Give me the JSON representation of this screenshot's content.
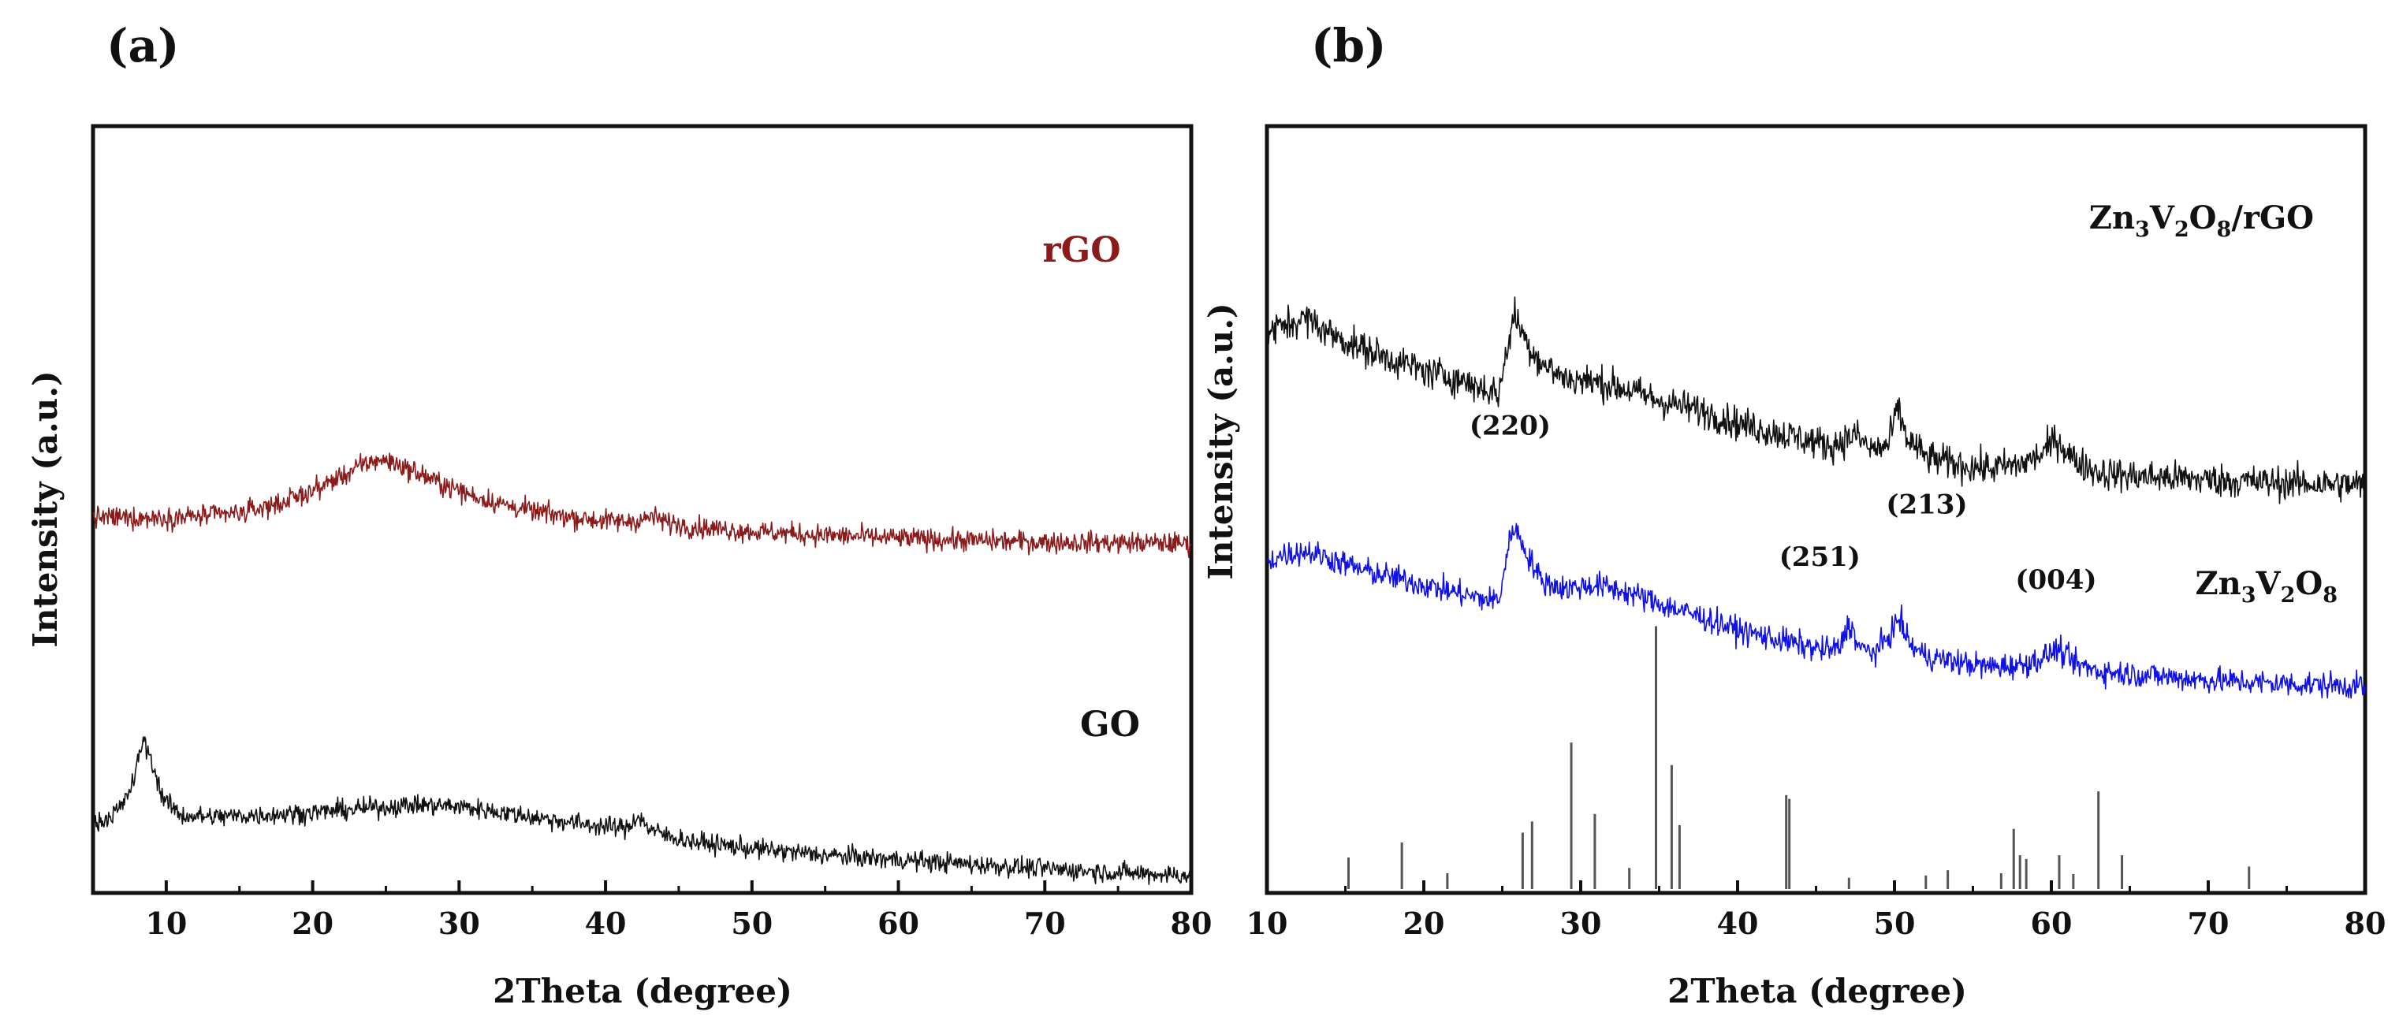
{
  "chart_data": [
    {
      "panel_label": "(a)",
      "type": "line",
      "xlabel": "2Theta (degree)",
      "ylabel": "Intensity (a.u.)",
      "xlim": [
        5,
        80
      ],
      "ylim": [
        0,
        100
      ],
      "xticks": [
        "10",
        "20",
        "30",
        "40",
        "50",
        "60",
        "70",
        "80"
      ],
      "yticks_shown": false,
      "series": [
        {
          "name": "rGO",
          "label": "rGO",
          "color": "#8b1a1a",
          "noise": 1.4,
          "x": [
            5,
            8,
            12,
            15,
            18,
            20,
            22,
            23.5,
            24.5,
            25.5,
            27,
            29,
            31,
            33,
            35,
            37,
            39,
            41,
            42.5,
            43.2,
            44,
            46,
            50,
            55,
            60,
            65,
            70,
            75,
            80
          ],
          "y": [
            49.5,
            49.4,
            49.6,
            50.0,
            51.5,
            53.0,
            55.0,
            56.5,
            57.2,
            56.8,
            55.5,
            53.8,
            52.3,
            51.2,
            50.3,
            49.7,
            49.2,
            48.9,
            49.1,
            49.6,
            48.9,
            48.2,
            47.6,
            47.1,
            46.7,
            46.4,
            46.2,
            46.1,
            46.0
          ]
        },
        {
          "name": "GO",
          "label": "GO",
          "color": "#111111",
          "noise": 1.3,
          "x": [
            5,
            6,
            7,
            7.8,
            8.4,
            9.0,
            9.8,
            11,
            13,
            16,
            20,
            24,
            27,
            30,
            33,
            36,
            38,
            40,
            41.5,
            42.2,
            43,
            44,
            46,
            50,
            55,
            60,
            65,
            70,
            75,
            80
          ],
          "y": [
            8.5,
            9.5,
            11.0,
            14.5,
            20.0,
            17.0,
            12.0,
            9.8,
            9.6,
            9.8,
            10.2,
            10.8,
            11.2,
            11.0,
            10.2,
            9.3,
            8.8,
            8.3,
            8.1,
            9.8,
            8.0,
            7.2,
            6.3,
            5.4,
            4.5,
            3.9,
            3.3,
            2.7,
            2.2,
            1.8
          ]
        }
      ]
    },
    {
      "panel_label": "(b)",
      "type": "line",
      "xlabel": "2Theta (degree)",
      "ylabel": "Intensity (a.u.)",
      "xlim": [
        10,
        80
      ],
      "ylim": [
        0,
        100
      ],
      "xticks": [
        "10",
        "20",
        "30",
        "40",
        "50",
        "60",
        "70",
        "80"
      ],
      "yticks_shown": false,
      "series": [
        {
          "name": "Zn3V2O8/rGO",
          "label_main": "Zn",
          "label_sub1": "3",
          "label_mid": "V",
          "label_sub2": "2",
          "label_o": "O",
          "label_sub3": "8",
          "label_tail": "/rGO",
          "color": "#111111",
          "noise": 2.2,
          "x": [
            10,
            11,
            12.5,
            14,
            16,
            18,
            20,
            22,
            24,
            24.8,
            25.4,
            25.8,
            26.5,
            27.5,
            29,
            31,
            33,
            35,
            38,
            40,
            42,
            44,
            46,
            47.5,
            48.5,
            49.6,
            50.2,
            50.8,
            52,
            54,
            56,
            58,
            59.5,
            60.3,
            61.5,
            63,
            65,
            67,
            70,
            73,
            76,
            80
          ],
          "y": [
            74,
            75,
            76,
            74,
            72,
            70.5,
            69,
            68,
            66.5,
            66,
            73,
            76.5,
            73,
            70,
            68,
            67.5,
            66.5,
            65,
            63.5,
            62,
            61,
            60,
            59,
            60.5,
            58.5,
            59,
            64,
            60,
            57.5,
            56.5,
            56,
            56.5,
            58,
            60,
            57,
            55.5,
            55,
            54.8,
            54.5,
            54.2,
            54,
            53.8
          ]
        },
        {
          "name": "Zn3V2O8",
          "label_main": "Zn",
          "label_sub1": "3",
          "label_mid": "V",
          "label_sub2": "2",
          "label_o": "O",
          "label_sub3": "8",
          "color": "#1010e8",
          "noise": 1.7,
          "x": [
            10,
            11,
            12.5,
            14,
            16,
            18,
            20,
            22,
            24,
            24.8,
            25.3,
            25.7,
            26.5,
            27.5,
            29,
            31,
            33,
            35,
            38,
            40,
            42,
            44,
            45.5,
            46.5,
            47.1,
            47.8,
            48.8,
            49.6,
            50.3,
            51,
            52,
            54,
            56,
            58,
            59.5,
            60.3,
            61.5,
            63,
            66,
            70,
            74,
            80
          ],
          "y": [
            43.5,
            44.5,
            45,
            44,
            42.5,
            41.5,
            40.5,
            39.5,
            38.5,
            38.5,
            44.5,
            48.5,
            45,
            41,
            40,
            40.5,
            39.5,
            38,
            36,
            34.5,
            33.5,
            32.5,
            31.8,
            32,
            35.5,
            32,
            31.5,
            33.5,
            36,
            32.5,
            31,
            30.2,
            29.6,
            29.8,
            30.8,
            32,
            30,
            29,
            28.5,
            27.8,
            27.4,
            27
          ]
        }
      ],
      "reference_pattern": {
        "color": "#555555",
        "x": [
          15.2,
          18.6,
          21.5,
          26.3,
          26.9,
          29.4,
          30.9,
          33.1,
          34.8,
          35.8,
          36.3,
          43.1,
          43.3,
          47.1,
          52,
          53.4,
          56.8,
          57.6,
          58,
          58.4,
          60.5,
          61.4,
          63,
          64.5,
          72.6
        ],
        "y": [
          4.2,
          6.2,
          2.1,
          7.5,
          9.0,
          19.5,
          10.0,
          2.8,
          35.0,
          16.5,
          8.5,
          12.5,
          12.0,
          1.5,
          1.8,
          2.5,
          2.1,
          8.0,
          4.5,
          4.0,
          4.5,
          2.0,
          13.0,
          4.5,
          3.0
        ]
      },
      "annotations": [
        {
          "text": "(220)",
          "x": 25.5
        },
        {
          "text": "(251)",
          "x": 47.0
        },
        {
          "text": "(213)",
          "x": 50.3
        },
        {
          "text": "(004)",
          "x": 60.3
        }
      ]
    }
  ]
}
